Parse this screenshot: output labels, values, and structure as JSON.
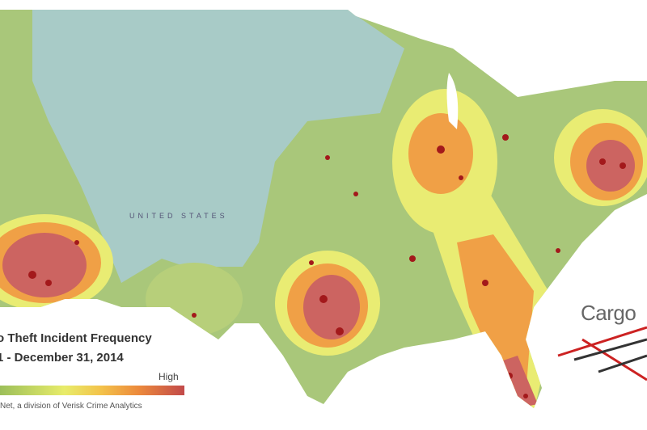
{
  "map": {
    "country_label": "UNITED STATES",
    "colors": {
      "base_north": "#a8cbc7",
      "base_south": "#a9c77a",
      "low": "#e9ec73",
      "mid": "#f0a046",
      "high": "#cc6461",
      "incident": "#a3191b"
    }
  },
  "legend": {
    "title_line1": "o Theft Incident Frequency",
    "title_line2": "1 - December 31, 2014",
    "scale_high_label": "High",
    "credit": "Net, a division of Verisk Crime Analytics"
  },
  "logo": {
    "text": "Cargo"
  }
}
